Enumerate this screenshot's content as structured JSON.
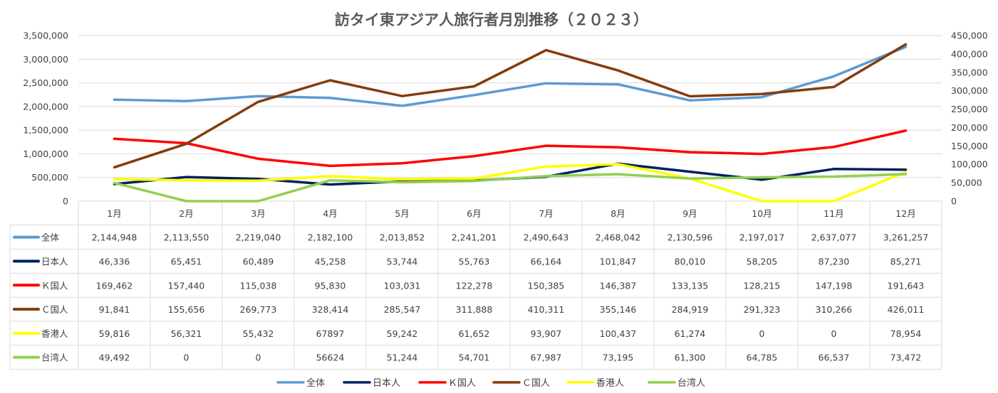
{
  "chart_data": {
    "type": "line",
    "title": "訪タイ東アジア人旅行者月別推移（２０２３）",
    "categories": [
      "1月",
      "2月",
      "3月",
      "4月",
      "5月",
      "6月",
      "7月",
      "8月",
      "9月",
      "10月",
      "11月",
      "12月"
    ],
    "ylim": [
      0,
      3500000
    ],
    "y_ticks": [
      "3,500,000",
      "3,000,000",
      "2,500,000",
      "2,000,000",
      "1,500,000",
      "1,000,000",
      "500,000",
      "0"
    ],
    "y2lim": [
      0,
      450000
    ],
    "y2_ticks": [
      "450,000",
      "400,000",
      "350,000",
      "300,000",
      "250,000",
      "200,000",
      "150,000",
      "100,000",
      "50,000",
      "0"
    ],
    "grid": true,
    "legend_position": "bottom",
    "series": [
      {
        "name": "全体",
        "axis": "primary",
        "color": "#5B9BD5",
        "values": [
          2144948,
          2113550,
          2219040,
          2182100,
          2013852,
          2241201,
          2490643,
          2468042,
          2130596,
          2197017,
          2637077,
          3261257
        ],
        "labels": [
          "2,144,948",
          "2,113,550",
          "2,219,040",
          "2,182,100",
          "2,013,852",
          "2,241,201",
          "2,490,643",
          "2,468,042",
          "2,130,596",
          "2,197,017",
          "2,637,077",
          "3,261,257"
        ]
      },
      {
        "name": "日本人",
        "axis": "secondary",
        "color": "#002060",
        "values": [
          46336,
          65451,
          60489,
          45258,
          53744,
          55763,
          66164,
          101847,
          80010,
          58205,
          87230,
          85271
        ],
        "labels": [
          "46,336",
          "65,451",
          "60,489",
          "45,258",
          "53,744",
          "55,763",
          "66,164",
          "101,847",
          "80,010",
          "58,205",
          "87,230",
          "85,271"
        ]
      },
      {
        "name": "Ｋ国人",
        "axis": "secondary",
        "color": "#FF0000",
        "values": [
          169462,
          157440,
          115038,
          95830,
          103031,
          122278,
          150385,
          146387,
          133135,
          128215,
          147198,
          191643
        ],
        "labels": [
          "169,462",
          "157,440",
          "115,038",
          "95,830",
          "103,031",
          "122,278",
          "150,385",
          "146,387",
          "133,135",
          "128,215",
          "147,198",
          "191,643"
        ]
      },
      {
        "name": "Ｃ国人",
        "axis": "secondary",
        "color": "#843C0C",
        "values": [
          91841,
          155656,
          269773,
          328414,
          285547,
          311888,
          410311,
          355146,
          284919,
          291323,
          310266,
          426011
        ],
        "labels": [
          "91,841",
          "155,656",
          "269,773",
          "328,414",
          "285,547",
          "311,888",
          "410,311",
          "355,146",
          "284,919",
          "291,323",
          "310,266",
          "426,011"
        ]
      },
      {
        "name": "香港人",
        "axis": "secondary",
        "color": "#FFFF00",
        "values": [
          59816,
          56321,
          55432,
          67897,
          59242,
          61652,
          93907,
          100437,
          61274,
          0,
          0,
          78954
        ],
        "labels": [
          "59,816",
          "56,321",
          "55,432",
          "67897",
          "59,242",
          "61,652",
          "93,907",
          "100,437",
          "61,274",
          "0",
          "0",
          "78,954"
        ]
      },
      {
        "name": "台湾人",
        "axis": "secondary",
        "color": "#92D050",
        "values": [
          49492,
          0,
          0,
          56624,
          51244,
          54701,
          67987,
          73195,
          61300,
          64785,
          66537,
          73472
        ],
        "labels": [
          "49,492",
          "0",
          "0",
          "56624",
          "51,244",
          "54,701",
          "67,987",
          "73,195",
          "61,300",
          "64,785",
          "66,537",
          "73,472"
        ]
      }
    ]
  }
}
